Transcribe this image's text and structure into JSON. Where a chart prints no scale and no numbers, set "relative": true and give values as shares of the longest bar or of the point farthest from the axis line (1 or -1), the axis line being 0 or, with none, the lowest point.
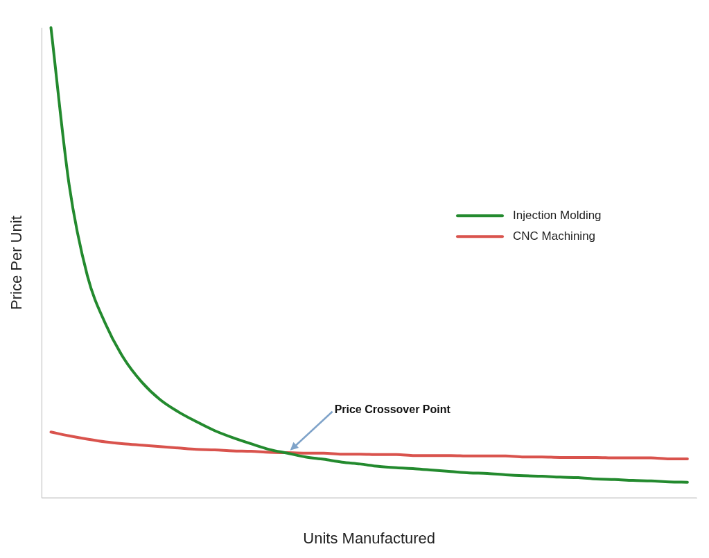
{
  "chart_data": {
    "type": "line",
    "relative": true,
    "xlabel": "Units Manufactured",
    "ylabel": "Price Per Unit",
    "legend": "right",
    "grid": false,
    "marker": "none",
    "line_style": "solid",
    "annotations": [
      "Price Crossover Point"
    ],
    "categories": [
      null,
      null,
      null,
      null,
      null,
      null,
      null,
      null,
      null,
      null,
      null,
      null,
      null,
      null,
      null,
      null,
      null,
      null,
      null,
      null,
      null,
      null,
      null,
      null,
      null,
      null,
      null,
      null,
      null,
      null,
      null,
      null,
      null,
      null,
      null,
      null
    ],
    "series": [
      {
        "name": "Injection Molding",
        "color": "#238a2e",
        "values": [
          1.0,
          0.666,
          0.473,
          0.37,
          0.297,
          0.246,
          0.209,
          0.183,
          0.162,
          0.143,
          0.128,
          0.115,
          0.103,
          0.095,
          0.087,
          0.082,
          0.076,
          0.072,
          0.067,
          0.064,
          0.062,
          0.059,
          0.056,
          0.053,
          0.052,
          0.049,
          0.047,
          0.046,
          0.044,
          0.043,
          0.04,
          0.039,
          0.037,
          0.036,
          0.034,
          0.033
        ]
      },
      {
        "name": "CNC Machining",
        "color": "#d9534d",
        "values": [
          0.14,
          0.132,
          0.125,
          0.119,
          0.115,
          0.112,
          0.109,
          0.106,
          0.103,
          0.102,
          0.1,
          0.099,
          0.097,
          0.096,
          0.095,
          0.095,
          0.093,
          0.093,
          0.092,
          0.092,
          0.09,
          0.09,
          0.09,
          0.089,
          0.089,
          0.089,
          0.087,
          0.087,
          0.086,
          0.086,
          0.086,
          0.085,
          0.085,
          0.085,
          0.083,
          0.083
        ]
      }
    ]
  }
}
